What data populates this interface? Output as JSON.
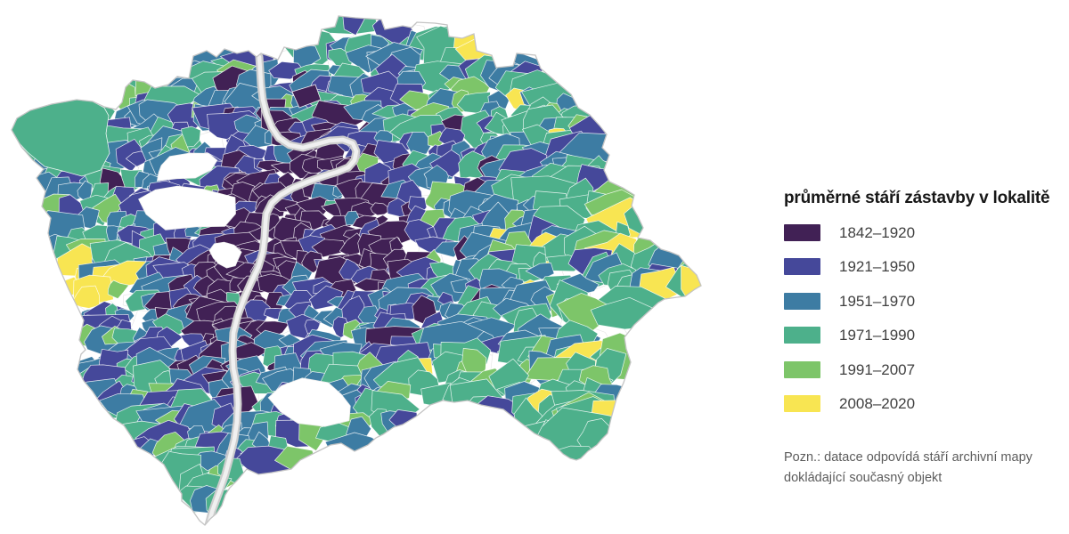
{
  "map": {
    "region": "Praha",
    "boundary_color": "#c4c4c4",
    "river_color": "#cdcdcd",
    "river_inner_color": "#f0f0f0",
    "background": "#ffffff"
  },
  "legend": {
    "title": "průměrné stáří zástavby v lokalitě",
    "items": [
      {
        "label": "1842–1920",
        "color": "#412155"
      },
      {
        "label": "1921–1950",
        "color": "#45489a"
      },
      {
        "label": "1951–1970",
        "color": "#3d7ca3"
      },
      {
        "label": "1971–1990",
        "color": "#4db08b"
      },
      {
        "label": "1991–2007",
        "color": "#7dc569"
      },
      {
        "label": "2008–2020",
        "color": "#f8e552"
      }
    ]
  },
  "note": "Pozn.: datace odpovídá stáří archivní mapy dokládající současný objekt"
}
